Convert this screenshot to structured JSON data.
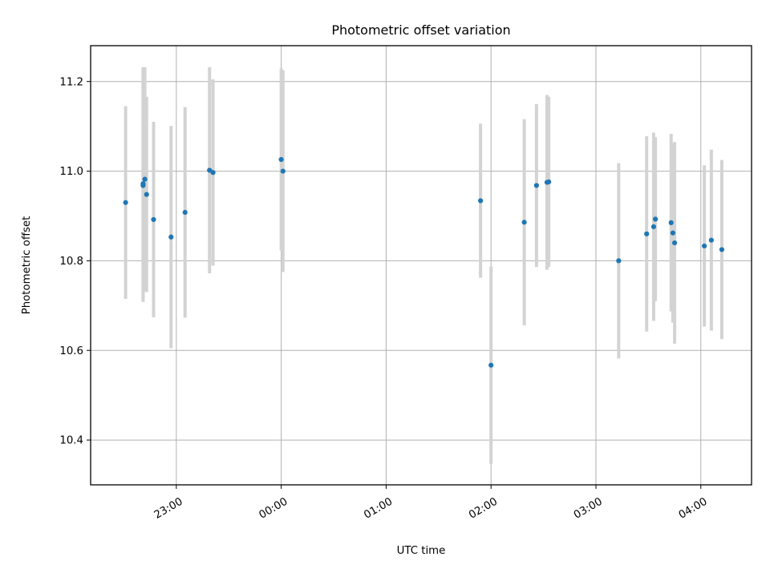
{
  "chart_data": {
    "type": "scatter",
    "title": "Photometric offset variation",
    "xlabel": "UTC time",
    "ylabel": "Photometric offset",
    "x_unit": "UTC time",
    "xlim": [
      "22:11",
      "04:29"
    ],
    "ylim": [
      10.3,
      11.28
    ],
    "x_ticks": [
      "23:00",
      "00:00",
      "01:00",
      "02:00",
      "03:00",
      "04:00"
    ],
    "y_ticks": [
      "10.4",
      "10.6",
      "10.8",
      "11.0",
      "11.2"
    ],
    "grid": true,
    "series": [
      {
        "marker_color": "#1f77b4",
        "errorbar_color": "#d3d3d3",
        "points": [
          {
            "x": "22:31",
            "y": 10.93,
            "err": 0.215
          },
          {
            "x": "22:41",
            "y": 10.968,
            "err": 0.26
          },
          {
            "x": "22:41",
            "y": 10.972,
            "err": 0.26
          },
          {
            "x": "22:42",
            "y": 10.982,
            "err": 0.25
          },
          {
            "x": "22:43",
            "y": 10.948,
            "err": 0.218
          },
          {
            "x": "22:47",
            "y": 10.892,
            "err": 0.218
          },
          {
            "x": "22:57",
            "y": 10.853,
            "err": 0.248
          },
          {
            "x": "23:05",
            "y": 10.908,
            "err": 0.235
          },
          {
            "x": "23:19",
            "y": 11.002,
            "err": 0.23
          },
          {
            "x": "23:21",
            "y": 10.997,
            "err": 0.208
          },
          {
            "x": "00:00",
            "y": 11.026,
            "err": 0.203
          },
          {
            "x": "00:01",
            "y": 11.0,
            "err": 0.225
          },
          {
            "x": "01:54",
            "y": 10.934,
            "err": 0.172
          },
          {
            "x": "02:00",
            "y": 10.567,
            "err": 0.22
          },
          {
            "x": "02:19",
            "y": 10.886,
            "err": 0.23
          },
          {
            "x": "02:26",
            "y": 10.968,
            "err": 0.182
          },
          {
            "x": "02:32",
            "y": 10.975,
            "err": 0.195
          },
          {
            "x": "02:33",
            "y": 10.976,
            "err": 0.19
          },
          {
            "x": "03:13",
            "y": 10.8,
            "err": 0.218
          },
          {
            "x": "03:29",
            "y": 10.86,
            "err": 0.218
          },
          {
            "x": "03:33",
            "y": 10.876,
            "err": 0.21
          },
          {
            "x": "03:34",
            "y": 10.893,
            "err": 0.183
          },
          {
            "x": "03:43",
            "y": 10.885,
            "err": 0.198
          },
          {
            "x": "03:44",
            "y": 10.862,
            "err": 0.2
          },
          {
            "x": "03:45",
            "y": 10.84,
            "err": 0.225
          },
          {
            "x": "04:02",
            "y": 10.833,
            "err": 0.18
          },
          {
            "x": "04:06",
            "y": 10.846,
            "err": 0.202
          },
          {
            "x": "04:12",
            "y": 10.825,
            "err": 0.2
          }
        ]
      }
    ]
  }
}
